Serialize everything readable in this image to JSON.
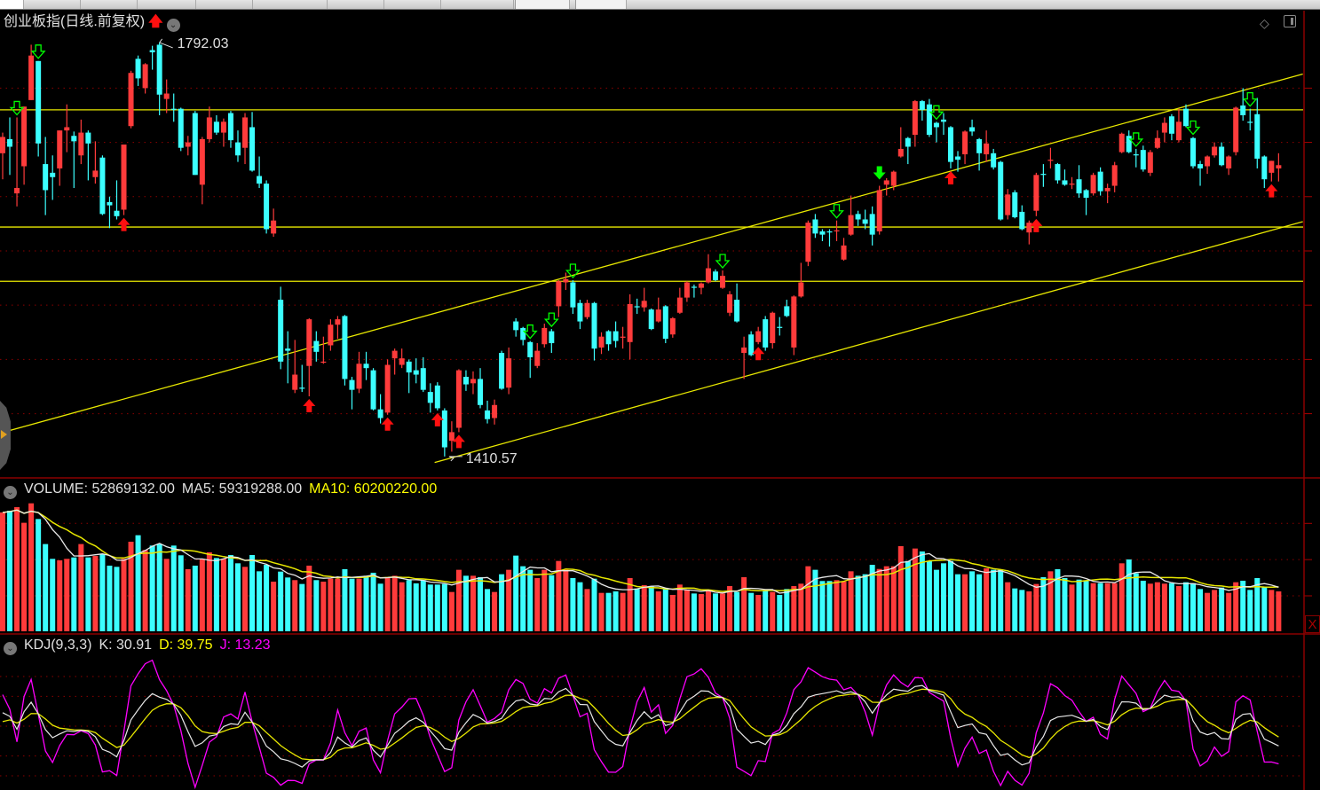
{
  "header": {
    "title": "创业板指(日线.前复权)",
    "trend_icon": "red-up-arrow-icon",
    "menu_icon": "chevron-down-circle-icon",
    "high_label": "1792.03",
    "low_label": "1410.57"
  },
  "volume_panel": {
    "volume": "VOLUME: 52869132.00",
    "ma5": "MA5: 59319288.00",
    "ma10": "MA10: 60200220.00"
  },
  "kdj_panel": {
    "name": "KDJ(9,3,3)",
    "k": "K: 30.91",
    "d": "D: 39.75",
    "j": "J: 13.23"
  },
  "toolbar_icons": [
    "diamond-icon",
    "panel-toggle-icon"
  ],
  "colors": {
    "up": "#ff3b3b",
    "down": "#3cffff",
    "lines": "#e8e800",
    "ma5": "#e8e8e8",
    "ma10": "#e8e800",
    "k": "#e8e8e8",
    "d": "#e8e800",
    "j": "#ff00ff",
    "sell_signal": "#00ff00",
    "buy_signal": "#ff1010",
    "grid": "#8b0000"
  },
  "chart_data": {
    "type": "candlestick",
    "price_grid": [
      1750,
      1700,
      1650,
      1600,
      1550,
      1500,
      1450
    ],
    "ohlc": [
      [
        1690,
        1709,
        1666,
        1705
      ],
      [
        1703,
        1723,
        1670,
        1696
      ],
      [
        1653,
        1723,
        1641,
        1658
      ],
      [
        1678,
        1733,
        1661,
        1733
      ],
      [
        1739,
        1790,
        1739,
        1780
      ],
      [
        1775,
        1775,
        1687,
        1699
      ],
      [
        1680,
        1705,
        1633,
        1656
      ],
      [
        1672,
        1688,
        1647,
        1668
      ],
      [
        1676,
        1711,
        1660,
        1711
      ],
      [
        1711,
        1735,
        1691,
        1714
      ],
      [
        1706,
        1710,
        1658,
        1701
      ],
      [
        1688,
        1721,
        1680,
        1709
      ],
      [
        1709,
        1711,
        1665,
        1699
      ],
      [
        1668,
        1701,
        1662,
        1674
      ],
      [
        1686,
        1688,
        1633,
        1634
      ],
      [
        1645,
        1650,
        1621,
        1642
      ],
      [
        1637,
        1665,
        1629,
        1632
      ],
      [
        1638,
        1698,
        1633,
        1698
      ],
      [
        1715,
        1766,
        1713,
        1764
      ],
      [
        1777,
        1780,
        1752,
        1759
      ],
      [
        1750,
        1773,
        1745,
        1772
      ],
      [
        1785,
        1789,
        1767,
        1783
      ],
      [
        1790,
        1792.03,
        1725,
        1744
      ],
      [
        1740,
        1758,
        1727,
        1745
      ],
      [
        1731,
        1745,
        1719,
        1730
      ],
      [
        1731,
        1732,
        1692,
        1695
      ],
      [
        1696,
        1706,
        1688,
        1700
      ],
      [
        1727,
        1729,
        1670,
        1670
      ],
      [
        1661,
        1705,
        1643,
        1703
      ],
      [
        1703,
        1733,
        1700,
        1723
      ],
      [
        1719,
        1725,
        1707,
        1709
      ],
      [
        1709,
        1722,
        1696,
        1719
      ],
      [
        1727,
        1729,
        1695,
        1702
      ],
      [
        1700,
        1711,
        1682,
        1688
      ],
      [
        1695,
        1727,
        1680,
        1723
      ],
      [
        1714,
        1728,
        1673,
        1674
      ],
      [
        1669,
        1687,
        1658,
        1662
      ],
      [
        1662,
        1665,
        1616,
        1620
      ],
      [
        1616,
        1639,
        1613,
        1628
      ],
      [
        1555,
        1567,
        1491,
        1498
      ],
      [
        1510,
        1526,
        1478,
        1508
      ],
      [
        1472,
        1518,
        1469,
        1486
      ],
      [
        1474,
        1495,
        1470,
        1473
      ],
      [
        1494,
        1538,
        1466,
        1537
      ],
      [
        1517,
        1526,
        1498,
        1507
      ],
      [
        1497,
        1521,
        1496,
        1498
      ],
      [
        1513,
        1537,
        1508,
        1532
      ],
      [
        1532,
        1540,
        1519,
        1537
      ],
      [
        1540,
        1541,
        1476,
        1482
      ],
      [
        1481,
        1484,
        1454,
        1472
      ],
      [
        1473,
        1507,
        1469,
        1496
      ],
      [
        1496,
        1507,
        1481,
        1492
      ],
      [
        1490,
        1492,
        1453,
        1454
      ],
      [
        1454,
        1468,
        1441,
        1446
      ],
      [
        1451,
        1500,
        1449,
        1495
      ],
      [
        1501,
        1510,
        1486,
        1508
      ],
      [
        1495,
        1510,
        1492,
        1501
      ],
      [
        1498,
        1500,
        1469,
        1488
      ],
      [
        1490,
        1501,
        1478,
        1486
      ],
      [
        1492,
        1502,
        1470,
        1472
      ],
      [
        1470,
        1478,
        1451,
        1460
      ],
      [
        1476,
        1479,
        1453,
        1455
      ],
      [
        1453,
        1455,
        1410.57,
        1419
      ],
      [
        1425,
        1443,
        1415,
        1433
      ],
      [
        1437,
        1491,
        1433,
        1490
      ],
      [
        1484,
        1490,
        1471,
        1477
      ],
      [
        1478,
        1489,
        1468,
        1482
      ],
      [
        1482,
        1492,
        1455,
        1458
      ],
      [
        1453,
        1462,
        1441,
        1445
      ],
      [
        1446,
        1463,
        1440,
        1458
      ],
      [
        1506,
        1508,
        1472,
        1473
      ],
      [
        1474,
        1511,
        1468,
        1501
      ],
      [
        1535,
        1538,
        1521,
        1527
      ],
      [
        1529,
        1530,
        1513,
        1518
      ],
      [
        1516,
        1517,
        1483,
        1502
      ],
      [
        1494,
        1515,
        1492,
        1508
      ],
      [
        1514,
        1533,
        1511,
        1529
      ],
      [
        1526,
        1528,
        1506,
        1515
      ],
      [
        1549,
        1573,
        1539,
        1572
      ],
      [
        1571,
        1580,
        1564,
        1574
      ],
      [
        1571,
        1573,
        1542,
        1548
      ],
      [
        1552,
        1555,
        1528,
        1535
      ],
      [
        1539,
        1555,
        1537,
        1552
      ],
      [
        1552,
        1553,
        1499,
        1510
      ],
      [
        1511,
        1525,
        1505,
        1521
      ],
      [
        1526,
        1527,
        1508,
        1514
      ],
      [
        1526,
        1535,
        1511,
        1517
      ],
      [
        1520,
        1530,
        1510,
        1521
      ],
      [
        1516,
        1560,
        1500,
        1551
      ],
      [
        1549,
        1556,
        1542,
        1548
      ],
      [
        1548,
        1566,
        1544,
        1554
      ],
      [
        1546,
        1547,
        1527,
        1528
      ],
      [
        1535,
        1557,
        1534,
        1546
      ],
      [
        1549,
        1550,
        1515,
        1519
      ],
      [
        1523,
        1539,
        1520,
        1538
      ],
      [
        1543,
        1566,
        1542,
        1557
      ],
      [
        1557,
        1572,
        1553,
        1571
      ],
      [
        1567,
        1569,
        1557,
        1566
      ],
      [
        1566,
        1571,
        1560,
        1570
      ],
      [
        1571,
        1597,
        1570,
        1584
      ],
      [
        1581,
        1583,
        1572,
        1573
      ],
      [
        1566,
        1582,
        1565,
        1577
      ],
      [
        1543,
        1563,
        1540,
        1560
      ],
      [
        1555,
        1570,
        1534,
        1535
      ],
      [
        1506,
        1521,
        1482,
        1511
      ],
      [
        1523,
        1526,
        1503,
        1504
      ],
      [
        1516,
        1530,
        1514,
        1526
      ],
      [
        1537,
        1540,
        1508,
        1511
      ],
      [
        1515,
        1544,
        1510,
        1543
      ],
      [
        1530,
        1539,
        1522,
        1529
      ],
      [
        1549,
        1555,
        1539,
        1540
      ],
      [
        1511,
        1559,
        1504,
        1558
      ],
      [
        1558,
        1589,
        1557,
        1571
      ],
      [
        1590,
        1628,
        1586,
        1626
      ],
      [
        1629,
        1634,
        1612,
        1616
      ],
      [
        1618,
        1620,
        1609,
        1615
      ],
      [
        1618,
        1620,
        1604,
        1617
      ],
      [
        1618,
        1628,
        1609,
        1619
      ],
      [
        1592,
        1612,
        1591,
        1605
      ],
      [
        1615,
        1651,
        1614,
        1633
      ],
      [
        1634,
        1637,
        1623,
        1629
      ],
      [
        1629,
        1638,
        1620,
        1625
      ],
      [
        1634,
        1641,
        1605,
        1615
      ],
      [
        1618,
        1660,
        1615,
        1656
      ],
      [
        1661,
        1667,
        1651,
        1665
      ],
      [
        1660,
        1674,
        1656,
        1673
      ],
      [
        1687,
        1714,
        1686,
        1694
      ],
      [
        1704,
        1705,
        1680,
        1696
      ],
      [
        1707,
        1739,
        1696,
        1738
      ],
      [
        1738,
        1739,
        1720,
        1730
      ],
      [
        1735,
        1740,
        1705,
        1707
      ],
      [
        1718,
        1719,
        1700,
        1714
      ],
      [
        1721,
        1727,
        1707,
        1719
      ],
      [
        1714,
        1715,
        1676,
        1682
      ],
      [
        1687,
        1692,
        1673,
        1684
      ],
      [
        1689,
        1711,
        1680,
        1710
      ],
      [
        1714,
        1721,
        1706,
        1710
      ],
      [
        1703,
        1704,
        1674,
        1690
      ],
      [
        1689,
        1711,
        1682,
        1699
      ],
      [
        1690,
        1694,
        1675,
        1677
      ],
      [
        1682,
        1683,
        1628,
        1629
      ],
      [
        1633,
        1657,
        1629,
        1652
      ],
      [
        1654,
        1656,
        1630,
        1631
      ],
      [
        1636,
        1642,
        1619,
        1620
      ],
      [
        1617,
        1628,
        1606,
        1626
      ],
      [
        1637,
        1672,
        1632,
        1670
      ],
      [
        1671,
        1680,
        1659,
        1670
      ],
      [
        1683,
        1695,
        1676,
        1684
      ],
      [
        1680,
        1681,
        1662,
        1665
      ],
      [
        1665,
        1675,
        1660,
        1661
      ],
      [
        1661,
        1668,
        1657,
        1662
      ],
      [
        1666,
        1679,
        1649,
        1653
      ],
      [
        1656,
        1657,
        1633,
        1649
      ],
      [
        1653,
        1672,
        1651,
        1670
      ],
      [
        1673,
        1677,
        1651,
        1655
      ],
      [
        1655,
        1662,
        1644,
        1658
      ],
      [
        1660,
        1682,
        1654,
        1679
      ],
      [
        1691,
        1709,
        1690,
        1708
      ],
      [
        1706,
        1711,
        1690,
        1691
      ],
      [
        1689,
        1694,
        1677,
        1688
      ],
      [
        1693,
        1697,
        1673,
        1675
      ],
      [
        1672,
        1693,
        1669,
        1691
      ],
      [
        1695,
        1711,
        1694,
        1704
      ],
      [
        1709,
        1723,
        1700,
        1718
      ],
      [
        1724,
        1726,
        1702,
        1708
      ],
      [
        1702,
        1731,
        1700,
        1719
      ],
      [
        1731,
        1735,
        1714,
        1715
      ],
      [
        1704,
        1705,
        1676,
        1678
      ],
      [
        1680,
        1683,
        1660,
        1676
      ],
      [
        1678,
        1688,
        1671,
        1687
      ],
      [
        1688,
        1700,
        1686,
        1696
      ],
      [
        1696,
        1700,
        1678,
        1679
      ],
      [
        1676,
        1688,
        1670,
        1687
      ],
      [
        1691,
        1733,
        1688,
        1732
      ],
      [
        1734,
        1750,
        1720,
        1725
      ],
      [
        1719,
        1731,
        1711,
        1718
      ],
      [
        1726,
        1741,
        1676,
        1685
      ],
      [
        1687,
        1688,
        1658,
        1666
      ],
      [
        1672,
        1683,
        1664,
        1683
      ],
      [
        1676,
        1690,
        1664,
        1679
      ]
    ],
    "volume": [
      157500000,
      159800000,
      164500000,
      143800000,
      169600000,
      148800000,
      115600000,
      96000000,
      94000000,
      96000000,
      97900000,
      115600000,
      97900000,
      99900000,
      101800000,
      87000000,
      85400000,
      96000000,
      118700000,
      127300000,
      107700000,
      113600000,
      115600000,
      96000000,
      113600000,
      100700000,
      82300000,
      87000000,
      96000000,
      104600000,
      97100000,
      96000000,
      101100000,
      90100000,
      85400000,
      101100000,
      79500000,
      88100000,
      65800000,
      79100000,
      71300000,
      67800000,
      62700000,
      87000000,
      67800000,
      65800000,
      69700000,
      69700000,
      82300000,
      69700000,
      69700000,
      73600000,
      77600000,
      63100000,
      71700000,
      73600000,
      65000000,
      67800000,
      63500000,
      67800000,
      61900000,
      61900000,
      62700000,
      52100000,
      81500000,
      73600000,
      73600000,
      71700000,
      56000000,
      52100000,
      75600000,
      81500000,
      100300000,
      86200000,
      81500000,
      70500000,
      81500000,
      74400000,
      93200000,
      81500000,
      70500000,
      65000000,
      56000000,
      69700000,
      50900000,
      50900000,
      52900000,
      50900000,
      70500000,
      56000000,
      61100000,
      59900000,
      52900000,
      56000000,
      48200000,
      61900000,
      54800000,
      50100000,
      49400000,
      54100000,
      50100000,
      50100000,
      59900000,
      52100000,
      71700000,
      50900000,
      48200000,
      54100000,
      52100000,
      48200000,
      56000000,
      59900000,
      63100000,
      86200000,
      81500000,
      66600000,
      66600000,
      67800000,
      65800000,
      79500000,
      73600000,
      75600000,
      88100000,
      82600000,
      86200000,
      86200000,
      112800000,
      93200000,
      109700000,
      105800000,
      93200000,
      81500000,
      90100000,
      93200000,
      75600000,
      75600000,
      79500000,
      75600000,
      83400000,
      81500000,
      81500000,
      65000000,
      56800000,
      54800000,
      52900000,
      62700000,
      71700000,
      79500000,
      82300000,
      70500000,
      61900000,
      68500000,
      66600000,
      63800000,
      63800000,
      63800000,
      63800000,
      90100000,
      95200000,
      76800000,
      67000000,
      63100000,
      65000000,
      63100000,
      63800000,
      59900000,
      65000000,
      63800000,
      56000000,
      50900000,
      54800000,
      58000000,
      50900000,
      65000000,
      67000000,
      54800000,
      70500000,
      58800000,
      54800000,
      52869132
    ],
    "volume_ma": [
      5,
      10
    ],
    "kdj_params": [
      9,
      3,
      3
    ],
    "horizontal_lines": [
      1730,
      1622,
      1572
    ],
    "trend_lines": [
      {
        "from": {
          "bar": -0.4,
          "price": 1432
        },
        "to": {
          "bar": 182.4,
          "price": 1763
        }
      },
      {
        "from": {
          "bar": 60.6,
          "price": 1405
        },
        "to": {
          "bar": 182.4,
          "price": 1627
        }
      }
    ],
    "sell_signals_hollow": [
      2,
      5,
      74,
      77,
      80,
      101,
      117,
      131,
      159,
      167,
      175
    ],
    "sell_signals_solid": [
      123
    ],
    "buy_signals": [
      17,
      43,
      54,
      61,
      64,
      106,
      133,
      145,
      178
    ],
    "high_marker_bar": 22,
    "low_marker_bar": 62
  }
}
